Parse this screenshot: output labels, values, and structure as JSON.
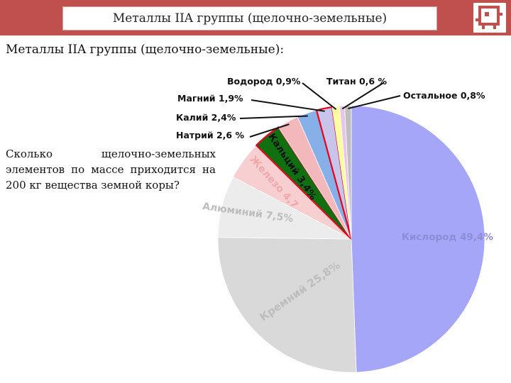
{
  "header": {
    "title": "Металлы IIA группы (щелочно-земельные)"
  },
  "heading": "Металлы IIA группы (щелочно-земельные):",
  "question": "Сколько щелочно-земельных элементов по массе приходится на 200 кг вещества земной коры?",
  "logo": {
    "icon": "robot-chip-icon",
    "color": "#c0504d"
  },
  "colors": {
    "header_bar": "#c0504d",
    "highlight_outline": "#e8001c"
  },
  "chart_data": {
    "type": "pie",
    "title": "",
    "start": "12 o'clock, clockwise",
    "slices": [
      {
        "label": "Кислород 49,4%",
        "value": 49.4,
        "color": "#a6a6f8",
        "label_style": "inside",
        "label_color": "#8c8cd8"
      },
      {
        "label": "Кремний 25,8%",
        "value": 25.8,
        "color": "#d9d9d9",
        "label_style": "inside",
        "label_color": "#bdbdbd"
      },
      {
        "label": "Алюминий 7,5%",
        "value": 7.5,
        "color": "#ececec",
        "label_style": "inside",
        "label_color": "#bdbdbd"
      },
      {
        "label": "Железо 4,7",
        "value": 4.7,
        "color": "#f7cfd1",
        "label_style": "inside",
        "label_color": "#f0a8ab"
      },
      {
        "label": "Кальций 3,4%",
        "value": 3.4,
        "color": "#107010",
        "label_style": "inside",
        "label_color": "#111111",
        "highlight": true
      },
      {
        "label": "Натрий 2,6 %",
        "value": 2.6,
        "color": "#f3b8bb",
        "label_style": "callout"
      },
      {
        "label": "Калий 2,4%",
        "value": 2.4,
        "color": "#88b0e8",
        "label_style": "callout"
      },
      {
        "label": "Магний 1,9%",
        "value": 1.9,
        "color": "#c8c4ea",
        "label_style": "callout",
        "highlight": true
      },
      {
        "label": "Водород 0,9%",
        "value": 0.9,
        "color": "#ffffa0",
        "label_style": "callout"
      },
      {
        "label": "Титан 0,6 %",
        "value": 0.6,
        "color": "#e8c4ec",
        "label_style": "callout"
      },
      {
        "label": "Остальное 0,8%",
        "value": 0.8,
        "color": "#bfbfbf",
        "label_style": "callout"
      }
    ]
  }
}
